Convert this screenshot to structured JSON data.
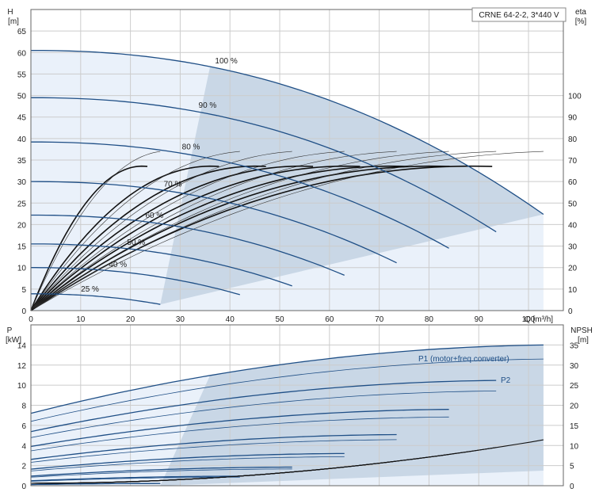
{
  "colors": {
    "curve": "#1f4f86",
    "thin": "#333333",
    "eta": "#111111",
    "area_light": "#eaf1fa",
    "area_dark": "#c9d7e6",
    "grid": "#cccccc"
  },
  "chart_data": [
    {
      "type": "line",
      "title": "CRNE 64-2-2, 3*440 V",
      "xlabel": "Q [m³/h]",
      "ylabel_line1": "H",
      "ylabel_line2": "[m]",
      "y2label_line1": "eta",
      "y2label_line2": "[%]",
      "xlim": [
        0,
        107
      ],
      "ylim": [
        0,
        70
      ],
      "y2lim": [
        0,
        140
      ],
      "xticks": [
        0,
        10,
        20,
        30,
        40,
        50,
        60,
        70,
        80,
        90,
        100
      ],
      "yticks": [
        0,
        5,
        10,
        15,
        20,
        25,
        30,
        35,
        40,
        45,
        50,
        55,
        60,
        65
      ],
      "y2ticks": [
        0,
        10,
        20,
        30,
        40,
        50,
        60,
        70,
        80,
        90,
        100
      ],
      "grid": true,
      "speed_labels": [
        "100 %",
        "90 %",
        "80 %",
        "70 %",
        "60 %",
        "50 %",
        "40 %",
        "25 %"
      ],
      "head_curves": [
        {
          "speed": 100,
          "qmax": 103,
          "h0": 60.5
        },
        {
          "speed": 90,
          "qmax": 93.5,
          "h0": 49.5
        },
        {
          "speed": 80,
          "qmax": 84,
          "h0": 39.2
        },
        {
          "speed": 70,
          "qmax": 73.5,
          "h0": 30
        },
        {
          "speed": 60,
          "qmax": 63,
          "h0": 22.2
        },
        {
          "speed": 50,
          "qmax": 52.5,
          "h0": 15.5
        },
        {
          "speed": 40,
          "qmax": 42,
          "h0": 10
        },
        {
          "speed": 25,
          "qmax": 26,
          "h0": 3.9
        }
      ],
      "eta_peak_percent": 67
    },
    {
      "type": "line",
      "xlim": [
        0,
        107
      ],
      "ylim": [
        0,
        16
      ],
      "y2lim": [
        0,
        40
      ],
      "ylabel_line1": "P",
      "ylabel_line2": "[kW]",
      "y2label_line1": "NPSH",
      "y2label_line2": "[m]",
      "yticks": [
        0,
        2,
        4,
        6,
        8,
        10,
        12,
        14
      ],
      "y2ticks": [
        0,
        5,
        10,
        15,
        20,
        25,
        30,
        35
      ],
      "grid": true,
      "series_labels": [
        "P1 (motor+freq.converter)",
        "P2"
      ],
      "p1_at_max_speed_kw": {
        "start": 7.2,
        "end": 14.0
      },
      "p2_at_max_speed_kw": {
        "start": 6.4,
        "end": 12.6
      },
      "npsh_max_m": 10.8
    }
  ]
}
